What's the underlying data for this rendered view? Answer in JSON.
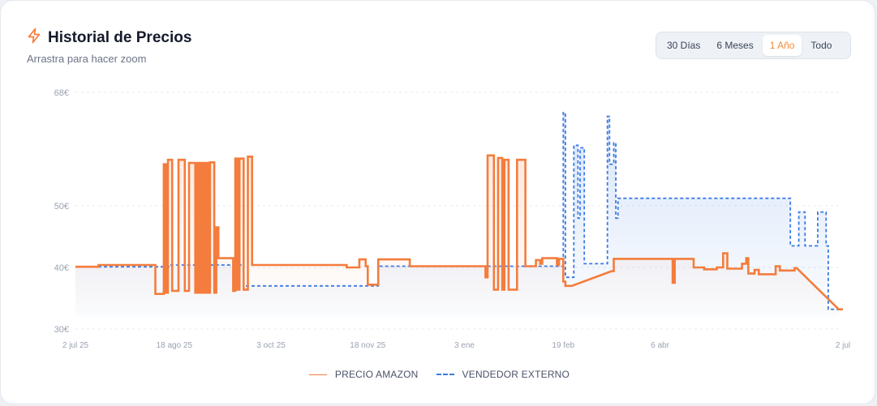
{
  "header": {
    "title": "Historial de Precios",
    "subtitle": "Arrastra para hacer zoom",
    "icon": "lightning-icon"
  },
  "range_selector": {
    "options": [
      "30 Días",
      "6 Meses",
      "1 Año",
      "Todo"
    ],
    "selected": "1 Año"
  },
  "colors": {
    "amazon": "#f47c3c",
    "external": "#3b7be5",
    "grid": "#e7eaf0",
    "tick": "#9aa2b1"
  },
  "chart_data": {
    "type": "line",
    "xlabel": "",
    "ylabel": "",
    "x_range": [
      "2025-07-02",
      "2026-07-02"
    ],
    "ylim": [
      30,
      68
    ],
    "y_ticks": [
      {
        "value": 30,
        "label": "30€"
      },
      {
        "value": 40,
        "label": "40€"
      },
      {
        "value": 50,
        "label": "50€"
      },
      {
        "value": 68,
        "label": "68€"
      }
    ],
    "x_ticks": [
      {
        "date": "2025-07-02",
        "label": "2 jul 25"
      },
      {
        "date": "2025-08-18",
        "label": "18 ago 25"
      },
      {
        "date": "2025-10-03",
        "label": "3 oct 25"
      },
      {
        "date": "2025-11-18",
        "label": "18 nov 25"
      },
      {
        "date": "2026-01-03",
        "label": "3 ene"
      },
      {
        "date": "2026-02-19",
        "label": "19 feb"
      },
      {
        "date": "2026-04-06",
        "label": "6 abr"
      },
      {
        "date": "2026-07-02",
        "label": "2 jul"
      }
    ],
    "grid": true,
    "legend_position": "bottom",
    "series": [
      {
        "name": "PRECIO AMAZON",
        "style": "solid-step",
        "points": [
          [
            "2025-07-02",
            40.1
          ],
          [
            "2025-07-13",
            40.1
          ],
          [
            "2025-07-13",
            40.4
          ],
          [
            "2025-08-09",
            40.4
          ],
          [
            "2025-08-09",
            35.7
          ],
          [
            "2025-08-13",
            35.7
          ],
          [
            "2025-08-13",
            56.6
          ],
          [
            "2025-08-14",
            56.6
          ],
          [
            "2025-08-14",
            35.9
          ],
          [
            "2025-08-15",
            35.9
          ],
          [
            "2025-08-15",
            57.3
          ],
          [
            "2025-08-17",
            57.3
          ],
          [
            "2025-08-17",
            36.2
          ],
          [
            "2025-08-20",
            36.2
          ],
          [
            "2025-08-20",
            57.3
          ],
          [
            "2025-08-23",
            57.3
          ],
          [
            "2025-08-23",
            36.2
          ],
          [
            "2025-08-25",
            36.2
          ],
          [
            "2025-08-25",
            56.8
          ],
          [
            "2025-08-28",
            56.8
          ],
          [
            "2025-08-28",
            35.9
          ],
          [
            "2025-08-29",
            35.9
          ],
          [
            "2025-08-29",
            56.8
          ],
          [
            "2025-08-30",
            56.8
          ],
          [
            "2025-08-30",
            35.9
          ],
          [
            "2025-08-31",
            35.9
          ],
          [
            "2025-08-31",
            56.8
          ],
          [
            "2025-09-01",
            56.8
          ],
          [
            "2025-09-01",
            35.9
          ],
          [
            "2025-09-02",
            35.9
          ],
          [
            "2025-09-02",
            56.8
          ],
          [
            "2025-09-03",
            56.8
          ],
          [
            "2025-09-03",
            35.9
          ],
          [
            "2025-09-04",
            35.9
          ],
          [
            "2025-09-04",
            56.9
          ],
          [
            "2025-09-06",
            56.9
          ],
          [
            "2025-09-06",
            35.9
          ],
          [
            "2025-09-07",
            35.9
          ],
          [
            "2025-09-07",
            46.5
          ],
          [
            "2025-09-08",
            46.5
          ],
          [
            "2025-09-08",
            41.5
          ],
          [
            "2025-09-15",
            41.5
          ],
          [
            "2025-09-15",
            36.2
          ],
          [
            "2025-09-16",
            36.2
          ],
          [
            "2025-09-16",
            57.5
          ],
          [
            "2025-09-17",
            57.5
          ],
          [
            "2025-09-17",
            36.4
          ],
          [
            "2025-09-18",
            36.4
          ],
          [
            "2025-09-18",
            57.5
          ],
          [
            "2025-09-20",
            57.5
          ],
          [
            "2025-09-20",
            36.4
          ],
          [
            "2025-09-22",
            36.4
          ],
          [
            "2025-09-22",
            57.8
          ],
          [
            "2025-09-24",
            57.8
          ],
          [
            "2025-09-24",
            40.4
          ],
          [
            "2025-11-08",
            40.4
          ],
          [
            "2025-11-08",
            40.0
          ],
          [
            "2025-11-14",
            40.0
          ],
          [
            "2025-11-14",
            41.3
          ],
          [
            "2025-11-17",
            41.3
          ],
          [
            "2025-11-17",
            40.2
          ],
          [
            "2025-11-18",
            40.2
          ],
          [
            "2025-11-18",
            37.2
          ],
          [
            "2025-11-23",
            37.2
          ],
          [
            "2025-11-23",
            41.3
          ],
          [
            "2025-12-08",
            41.3
          ],
          [
            "2025-12-08",
            40.2
          ],
          [
            "2026-01-13",
            40.2
          ],
          [
            "2026-01-13",
            38.4
          ],
          [
            "2026-01-14",
            38.4
          ],
          [
            "2026-01-14",
            58.0
          ],
          [
            "2026-01-17",
            58.0
          ],
          [
            "2026-01-17",
            36.4
          ],
          [
            "2026-01-19",
            36.4
          ],
          [
            "2026-01-19",
            57.6
          ],
          [
            "2026-01-21",
            57.6
          ],
          [
            "2026-01-21",
            36.4
          ],
          [
            "2026-01-22",
            36.4
          ],
          [
            "2026-01-22",
            57.3
          ],
          [
            "2026-01-24",
            57.3
          ],
          [
            "2026-01-24",
            36.4
          ],
          [
            "2026-01-28",
            36.4
          ],
          [
            "2026-01-28",
            57.3
          ],
          [
            "2026-02-01",
            57.3
          ],
          [
            "2026-02-01",
            40.2
          ],
          [
            "2026-02-06",
            40.2
          ],
          [
            "2026-02-06",
            41.2
          ],
          [
            "2026-02-08",
            41.2
          ],
          [
            "2026-02-08",
            40.6
          ],
          [
            "2026-02-09",
            40.6
          ],
          [
            "2026-02-09",
            41.5
          ],
          [
            "2026-02-16",
            41.5
          ],
          [
            "2026-02-16",
            40.4
          ],
          [
            "2026-02-17",
            40.4
          ],
          [
            "2026-02-17",
            41.4
          ],
          [
            "2026-02-19",
            41.4
          ],
          [
            "2026-02-19",
            37.7
          ],
          [
            "2026-02-20",
            37.7
          ],
          [
            "2026-02-20",
            37.0
          ],
          [
            "2026-02-23",
            37.0
          ],
          [
            "2026-03-14",
            39.4
          ],
          [
            "2026-03-15",
            39.4
          ],
          [
            "2026-03-15",
            41.4
          ],
          [
            "2026-04-12",
            41.4
          ],
          [
            "2026-04-12",
            37.5
          ],
          [
            "2026-04-13",
            37.5
          ],
          [
            "2026-04-13",
            41.4
          ],
          [
            "2026-04-22",
            41.4
          ],
          [
            "2026-04-22",
            40.0
          ],
          [
            "2026-04-27",
            40.0
          ],
          [
            "2026-04-27",
            39.7
          ],
          [
            "2026-05-03",
            39.7
          ],
          [
            "2026-05-03",
            40.0
          ],
          [
            "2026-05-06",
            40.0
          ],
          [
            "2026-05-06",
            42.3
          ],
          [
            "2026-05-08",
            42.3
          ],
          [
            "2026-05-08",
            39.8
          ],
          [
            "2026-05-15",
            39.8
          ],
          [
            "2026-05-15",
            40.6
          ],
          [
            "2026-05-17",
            40.6
          ],
          [
            "2026-05-17",
            41.5
          ],
          [
            "2026-05-18",
            41.5
          ],
          [
            "2026-05-18",
            39.0
          ],
          [
            "2026-05-21",
            39.0
          ],
          [
            "2026-05-21",
            39.6
          ],
          [
            "2026-05-23",
            39.6
          ],
          [
            "2026-05-23",
            38.9
          ],
          [
            "2026-05-31",
            38.9
          ],
          [
            "2026-05-31",
            40.2
          ],
          [
            "2026-06-02",
            40.2
          ],
          [
            "2026-06-02",
            39.5
          ],
          [
            "2026-06-09",
            39.5
          ],
          [
            "2026-06-09",
            39.9
          ],
          [
            "2026-06-10",
            39.9
          ],
          [
            "2026-06-30",
            33.2
          ],
          [
            "2026-07-02",
            33.2
          ]
        ]
      },
      {
        "name": "VENDEDOR EXTERNO",
        "style": "dashed-step",
        "points": [
          [
            "2025-07-02",
            40.1
          ],
          [
            "2025-08-16",
            40.1
          ],
          [
            "2025-08-16",
            40.4
          ],
          [
            "2025-09-20",
            40.4
          ],
          [
            "2025-09-20",
            37.0
          ],
          [
            "2025-11-23",
            37.0
          ],
          [
            "2025-11-23",
            40.2
          ],
          [
            "2026-02-19",
            40.2
          ],
          [
            "2026-02-19",
            64.8
          ],
          [
            "2026-02-20",
            64.8
          ],
          [
            "2026-02-20",
            38.4
          ],
          [
            "2026-02-24",
            38.4
          ],
          [
            "2026-02-24",
            59.6
          ],
          [
            "2026-02-26",
            59.6
          ],
          [
            "2026-02-26",
            48.0
          ],
          [
            "2026-02-27",
            48.0
          ],
          [
            "2026-02-27",
            59.2
          ],
          [
            "2026-03-01",
            59.2
          ],
          [
            "2026-03-01",
            40.6
          ],
          [
            "2026-03-12",
            40.6
          ],
          [
            "2026-03-12",
            64.2
          ],
          [
            "2026-03-13",
            64.2
          ],
          [
            "2026-03-13",
            56.6
          ],
          [
            "2026-03-15",
            56.6
          ],
          [
            "2026-03-15",
            60.0
          ],
          [
            "2026-03-16",
            60.0
          ],
          [
            "2026-03-16",
            48.0
          ],
          [
            "2026-03-17",
            48.0
          ],
          [
            "2026-03-17",
            51.2
          ],
          [
            "2026-06-07",
            51.2
          ],
          [
            "2026-06-07",
            43.5
          ],
          [
            "2026-06-11",
            43.5
          ],
          [
            "2026-06-11",
            49.0
          ],
          [
            "2026-06-14",
            49.0
          ],
          [
            "2026-06-14",
            43.5
          ],
          [
            "2026-06-20",
            43.5
          ],
          [
            "2026-06-20",
            49.0
          ],
          [
            "2026-06-24",
            49.0
          ],
          [
            "2026-06-24",
            43.5
          ],
          [
            "2026-06-25",
            43.5
          ],
          [
            "2026-06-25",
            33.2
          ],
          [
            "2026-06-30",
            33.2
          ]
        ]
      }
    ]
  }
}
